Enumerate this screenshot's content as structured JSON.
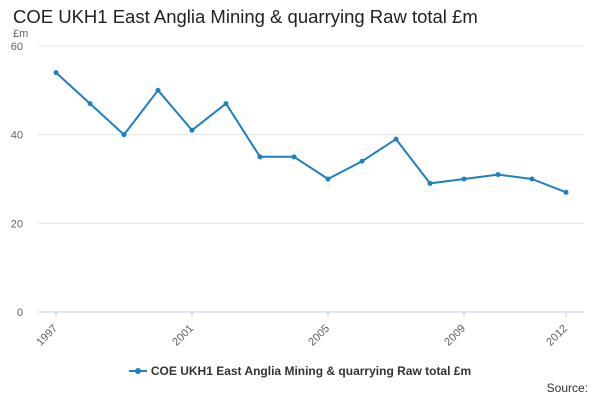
{
  "chart_data": {
    "type": "line",
    "title": "COE UKH1 East Anglia Mining & quarrying Raw total £m",
    "ylabel": "£m",
    "xlabel": "",
    "x": [
      1997,
      1998,
      1999,
      2000,
      2001,
      2002,
      2003,
      2004,
      2005,
      2006,
      2007,
      2008,
      2009,
      2010,
      2011,
      2012
    ],
    "series": [
      {
        "name": "COE UKH1 East Anglia Mining & quarrying Raw total £m",
        "values": [
          54,
          47,
          40,
          50,
          41,
          47,
          35,
          35,
          30,
          34,
          39,
          29,
          30,
          31,
          30,
          27
        ]
      }
    ],
    "xticks": [
      "1997",
      "2001",
      "2005",
      "2009",
      "2012"
    ],
    "yticks": [
      "0",
      "20",
      "40",
      "60"
    ],
    "xlim": [
      1997,
      2012
    ],
    "ylim": [
      0,
      60
    ],
    "grid": true,
    "legend_position": "bottom",
    "source_label": "Source:",
    "colors": {
      "series": "#1f7fbf",
      "grid": "#e6e6e6",
      "axis": "#c0d0e0",
      "text": "#606060"
    }
  }
}
